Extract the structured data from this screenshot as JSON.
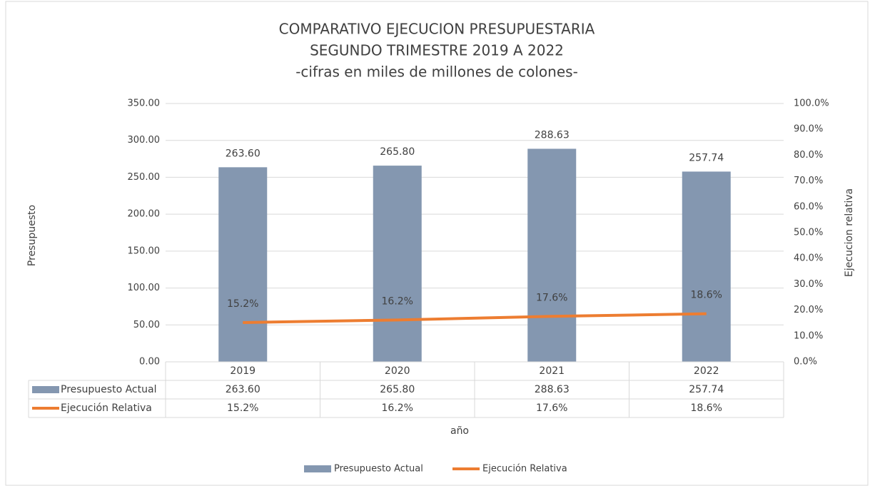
{
  "chart_data": {
    "type": "combo",
    "title": [
      "COMPARATIVO EJECUCION PRESUPUESTARIA",
      "SEGUNDO TRIMESTRE 2019 A 2022",
      "-cifras en miles de millones de colones-"
    ],
    "x_label": "año",
    "y_label": "Presupuesto",
    "y2_label": "Ejecucion relativa",
    "categories": [
      "2019",
      "2020",
      "2021",
      "2022"
    ],
    "series": [
      {
        "name": "Presupuesto Actual",
        "type": "bar",
        "color": "#8497b0",
        "values": [
          263.6,
          265.8,
          288.63,
          257.74
        ],
        "value_labels": [
          "263.60",
          "265.80",
          "288.63",
          "257.74"
        ]
      },
      {
        "name": "Ejecución Relativa",
        "type": "line",
        "axis": "y2",
        "color": "#ed7d31",
        "values": [
          15.2,
          16.2,
          17.6,
          18.6
        ],
        "value_labels": [
          "15.2%",
          "16.2%",
          "17.6%",
          "18.6%"
        ]
      }
    ],
    "ylim": [
      0,
      350
    ],
    "yticks": [
      {
        "value": 0,
        "label": "0.00"
      },
      {
        "value": 50,
        "label": "50.00"
      },
      {
        "value": 100,
        "label": "100.00"
      },
      {
        "value": 150,
        "label": "150.00"
      },
      {
        "value": 200,
        "label": "200.00"
      },
      {
        "value": 250,
        "label": "250.00"
      },
      {
        "value": 300,
        "label": "300.00"
      },
      {
        "value": 350,
        "label": "350.00"
      }
    ],
    "y2lim": [
      0,
      100
    ],
    "y2ticks": [
      {
        "value": 0,
        "label": "0.0%"
      },
      {
        "value": 10,
        "label": "10.0%"
      },
      {
        "value": 20,
        "label": "20.0%"
      },
      {
        "value": 30,
        "label": "30.0%"
      },
      {
        "value": 40,
        "label": "40.0%"
      },
      {
        "value": 50,
        "label": "50.0%"
      },
      {
        "value": 60,
        "label": "60.0%"
      },
      {
        "value": 70,
        "label": "70.0%"
      },
      {
        "value": 80,
        "label": "80.0%"
      },
      {
        "value": 90,
        "label": "90.0%"
      },
      {
        "value": 100,
        "label": "100.0%"
      }
    ],
    "grid": true,
    "data_table": true,
    "legend": "bottom"
  }
}
